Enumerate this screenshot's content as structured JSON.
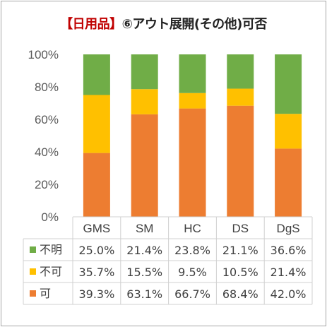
{
  "title": {
    "tag": "【日用品】",
    "rest": "⑥アウト展開(その他)可否"
  },
  "colors": {
    "可": "#ed7d31",
    "不可": "#ffc000",
    "不明": "#70ad47"
  },
  "chart_data": {
    "type": "bar",
    "stacked": true,
    "percent": true,
    "categories": [
      "GMS",
      "SM",
      "HC",
      "DS",
      "DgS"
    ],
    "ylim": [
      0,
      100
    ],
    "yticks": [
      "0%",
      "20%",
      "40%",
      "60%",
      "80%",
      "100%"
    ],
    "grid": false,
    "legend": "data-table-left",
    "series": [
      {
        "name": "可",
        "values": [
          39.3,
          63.1,
          66.7,
          68.4,
          42.0
        ],
        "labels": [
          "39.3%",
          "63.1%",
          "66.7%",
          "68.4%",
          "42.0%"
        ]
      },
      {
        "name": "不可",
        "values": [
          35.7,
          15.5,
          9.5,
          10.5,
          21.4
        ],
        "labels": [
          "35.7%",
          "15.5%",
          "9.5%",
          "10.5%",
          "21.4%"
        ]
      },
      {
        "name": "不明",
        "values": [
          25.0,
          21.4,
          23.8,
          21.1,
          36.6
        ],
        "labels": [
          "25.0%",
          "21.4%",
          "23.8%",
          "21.1%",
          "36.6%"
        ]
      }
    ],
    "table_row_order": [
      "不明",
      "不可",
      "可"
    ]
  }
}
